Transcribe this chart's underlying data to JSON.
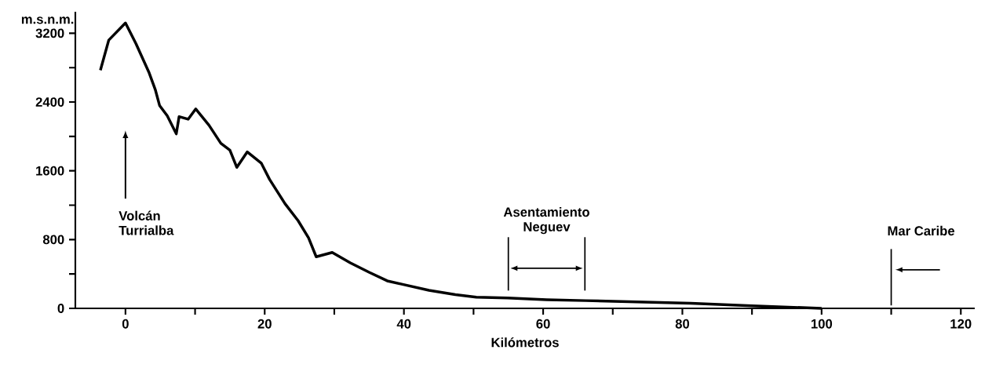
{
  "chart_data": {
    "type": "line",
    "xlabel": "Kilómetros",
    "ylabel": "m.s.n.m.",
    "color": "#000000",
    "x": [
      -3.6,
      -2.4,
      0,
      1.5,
      3.4,
      4.3,
      4.9,
      6.0,
      7.3,
      7.7,
      9.0,
      10.1,
      12.0,
      13.7,
      15.0,
      16.0,
      17.5,
      19.5,
      20.7,
      22.9,
      24.8,
      26.3,
      27.4,
      29.7,
      32.3,
      35.0,
      37.6,
      39.8,
      43.6,
      47.4,
      50.4,
      54.9,
      60.5,
      66.1,
      81.2,
      90,
      100
    ],
    "values": [
      2770,
      3120,
      3320,
      3080,
      2740,
      2540,
      2360,
      2240,
      2030,
      2230,
      2200,
      2320,
      2130,
      1920,
      1840,
      1640,
      1820,
      1690,
      1500,
      1220,
      1020,
      820,
      600,
      650,
      530,
      420,
      320,
      280,
      210,
      160,
      130,
      120,
      100,
      90,
      60,
      30,
      0
    ],
    "xlim": [
      -7.2,
      122
    ],
    "ylim": [
      0,
      3450
    ],
    "xticks": [
      0,
      {
        "value": 10,
        "label": null
      },
      20,
      {
        "value": 30,
        "label": null
      },
      40,
      {
        "value": 50,
        "label": null
      },
      60,
      {
        "value": 70,
        "label": null
      },
      80,
      {
        "value": 90,
        "label": null
      },
      100,
      {
        "value": 110,
        "label": null
      },
      120
    ],
    "yticks": [
      0,
      {
        "value": 400,
        "label": null
      },
      800,
      {
        "value": 1200,
        "label": null
      },
      1600,
      {
        "value": 2000,
        "label": null
      },
      2400,
      {
        "value": 2800,
        "label": null
      },
      3200
    ],
    "annotations": [
      "Volcán Turrialba",
      "Asentamiento Neguev"
    ],
    "ref_lines": [
      {
        "axis": "x",
        "value": 55
      },
      {
        "axis": "x",
        "value": 66
      },
      {
        "axis": "x",
        "value": 110,
        "label": "Mar Caribe"
      }
    ]
  }
}
